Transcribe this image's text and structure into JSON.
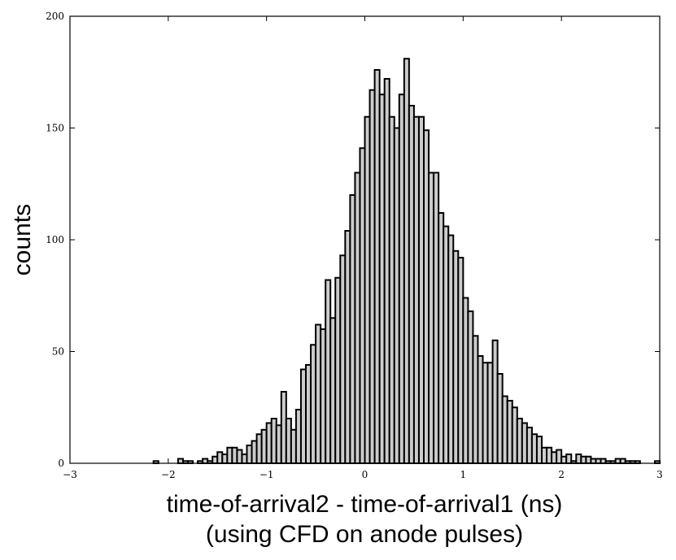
{
  "chart_data": {
    "type": "bar",
    "title": "",
    "xlabel": "time-of-arrival2 - time-of-arrival1 (ns)",
    "xlabel_line2": "(using CFD on anode pulses)",
    "ylabel": "counts",
    "xlim": [
      -3,
      3
    ],
    "ylim": [
      0,
      200
    ],
    "xticks": [
      "−3",
      "−2",
      "−1",
      "0",
      "1",
      "2",
      "3"
    ],
    "xtick_values": [
      -3,
      -2,
      -1,
      0,
      1,
      2,
      3
    ],
    "yticks": [
      "0",
      "50",
      "100",
      "150",
      "200"
    ],
    "ytick_values": [
      0,
      50,
      100,
      150,
      200
    ],
    "bar_color": "#cccccc",
    "edge_color": "#000000",
    "grid": false,
    "bin_width": 0.05,
    "x": [
      -2.15,
      -1.9,
      -1.85,
      -1.8,
      -1.7,
      -1.65,
      -1.6,
      -1.55,
      -1.5,
      -1.45,
      -1.4,
      -1.35,
      -1.3,
      -1.25,
      -1.2,
      -1.15,
      -1.1,
      -1.05,
      -1.0,
      -0.95,
      -0.9,
      -0.85,
      -0.8,
      -0.75,
      -0.7,
      -0.65,
      -0.6,
      -0.55,
      -0.5,
      -0.45,
      -0.4,
      -0.35,
      -0.3,
      -0.25,
      -0.2,
      -0.15,
      -0.1,
      -0.05,
      0.0,
      0.05,
      0.1,
      0.15,
      0.2,
      0.25,
      0.3,
      0.35,
      0.4,
      0.45,
      0.5,
      0.55,
      0.6,
      0.65,
      0.7,
      0.75,
      0.8,
      0.85,
      0.9,
      0.95,
      1.0,
      1.05,
      1.1,
      1.15,
      1.2,
      1.25,
      1.3,
      1.35,
      1.4,
      1.45,
      1.5,
      1.55,
      1.6,
      1.65,
      1.7,
      1.75,
      1.8,
      1.85,
      1.9,
      1.95,
      2.0,
      2.05,
      2.1,
      2.15,
      2.2,
      2.25,
      2.3,
      2.35,
      2.4,
      2.45,
      2.5,
      2.55,
      2.6,
      2.65,
      2.7,
      2.75,
      2.95
    ],
    "values": [
      1,
      2,
      1,
      1,
      1,
      2,
      1,
      3,
      5,
      4,
      7,
      7,
      6,
      4,
      8,
      10,
      13,
      15,
      18,
      20,
      17,
      32,
      20,
      15,
      24,
      42,
      44,
      53,
      62,
      60,
      82,
      65,
      83,
      93,
      104,
      120,
      130,
      141,
      155,
      167,
      176,
      165,
      172,
      155,
      150,
      165,
      181,
      160,
      155,
      155,
      149,
      130,
      130,
      112,
      106,
      102,
      95,
      92,
      74,
      68,
      57,
      48,
      45,
      45,
      55,
      40,
      30,
      28,
      25,
      20,
      18,
      16,
      13,
      12,
      7,
      7,
      5,
      6,
      3,
      4,
      1,
      4,
      3,
      3,
      2,
      2,
      2,
      1,
      1,
      2,
      2,
      1,
      1,
      1,
      1
    ]
  }
}
